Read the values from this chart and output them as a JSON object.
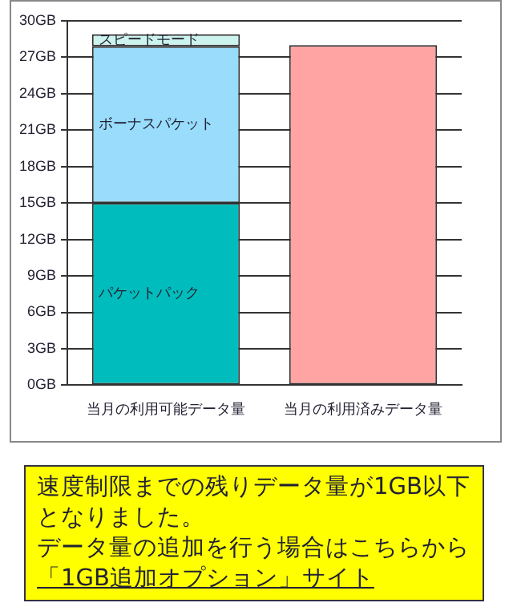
{
  "chart_data": {
    "type": "bar",
    "stacked": true,
    "categories": [
      "当月の利用可能データ量",
      "当月の利用済みデータ量"
    ],
    "series": [
      {
        "name": "パケットパック",
        "color": "#00bcbc",
        "values": [
          15,
          null
        ]
      },
      {
        "name": "ボーナスパケット",
        "color": "#99dcfc",
        "values": [
          12.9,
          null
        ]
      },
      {
        "name": "スピードモード",
        "color": "#ccf3ee",
        "values": [
          1.0,
          null
        ]
      },
      {
        "color": "#ffa3a3",
        "values": [
          null,
          28.0
        ]
      }
    ],
    "ylim": [
      0,
      30
    ],
    "yticks": [
      {
        "value": 0,
        "label": "0GB"
      },
      {
        "value": 3,
        "label": "3GB"
      },
      {
        "value": 6,
        "label": "6GB"
      },
      {
        "value": 9,
        "label": "9GB"
      },
      {
        "value": 12,
        "label": "12GB"
      },
      {
        "value": 15,
        "label": "15GB"
      },
      {
        "value": 18,
        "label": "18GB"
      },
      {
        "value": 21,
        "label": "21GB"
      },
      {
        "value": 24,
        "label": "24GB"
      },
      {
        "value": 27,
        "label": "27GB"
      },
      {
        "value": 30,
        "label": "30GB"
      }
    ],
    "grid": "y",
    "legend": false,
    "annotations": [
      "速度制限までの残りデータ量が1GB以下となりました。",
      "データ量の追加を行う場合はこちらから",
      "「1GB追加オプション」サイト"
    ]
  }
}
